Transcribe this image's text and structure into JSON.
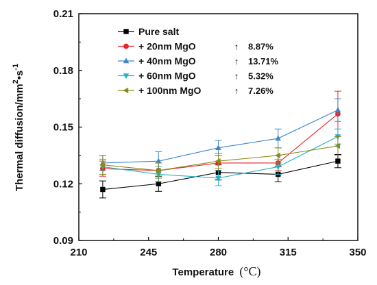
{
  "chart_data": {
    "type": "line",
    "xlabel": "Temperature",
    "xlabel_unit": "(°C)",
    "ylabel_text": "Thermal diffusion/mm",
    "ylabel_sup1": "2",
    "ylabel_mid": "•s",
    "ylabel_sup2": "-1",
    "xlim": [
      210,
      350
    ],
    "ylim": [
      0.09,
      0.21
    ],
    "xticks": [
      "210",
      "245",
      "280",
      "315",
      "350"
    ],
    "yticks": [
      "0.09",
      "0.12",
      "0.15",
      "0.18",
      "0.21"
    ],
    "x": [
      222,
      250,
      280,
      310,
      340
    ],
    "series": [
      {
        "name": "Pure salt",
        "color": "#000000",
        "marker": "square",
        "values": [
          0.117,
          0.12,
          0.126,
          0.125,
          0.132
        ],
        "err": [
          0.0045,
          0.004,
          0.004,
          0.004,
          0.0035
        ]
      },
      {
        "name": "+ 20nm MgO",
        "color": "#e8232a",
        "marker": "circle",
        "values": [
          0.128,
          0.127,
          0.131,
          0.131,
          0.157
        ],
        "err": [
          0.004,
          0.004,
          0.004,
          0.004,
          0.012
        ]
      },
      {
        "name": "+ 40nm MgO",
        "color": "#3a86c8",
        "marker": "triangle-up",
        "values": [
          0.131,
          0.132,
          0.139,
          0.144,
          0.159
        ],
        "err": [
          0.004,
          0.005,
          0.004,
          0.005,
          0.006
        ]
      },
      {
        "name": "+ 60nm MgO",
        "color": "#22b3c5",
        "marker": "triangle-down",
        "values": [
          0.129,
          0.125,
          0.123,
          0.129,
          0.145
        ],
        "err": [
          0.004,
          0.004,
          0.004,
          0.004,
          0.004
        ]
      },
      {
        "name": "+ 100nm MgO",
        "color": "#8a8a1a",
        "marker": "triangle-left",
        "values": [
          0.13,
          0.127,
          0.132,
          0.135,
          0.14
        ],
        "err": [
          0.005,
          0.004,
          0.004,
          0.004,
          0.005
        ]
      }
    ],
    "annotations": [
      {
        "arrow": "↑",
        "text": "8.87%"
      },
      {
        "arrow": "↑",
        "text": "13.71%"
      },
      {
        "arrow": "↑",
        "text": "5.32%"
      },
      {
        "arrow": "↑",
        "text": "7.26%"
      }
    ],
    "legend_position": "top-left",
    "grid": false
  }
}
